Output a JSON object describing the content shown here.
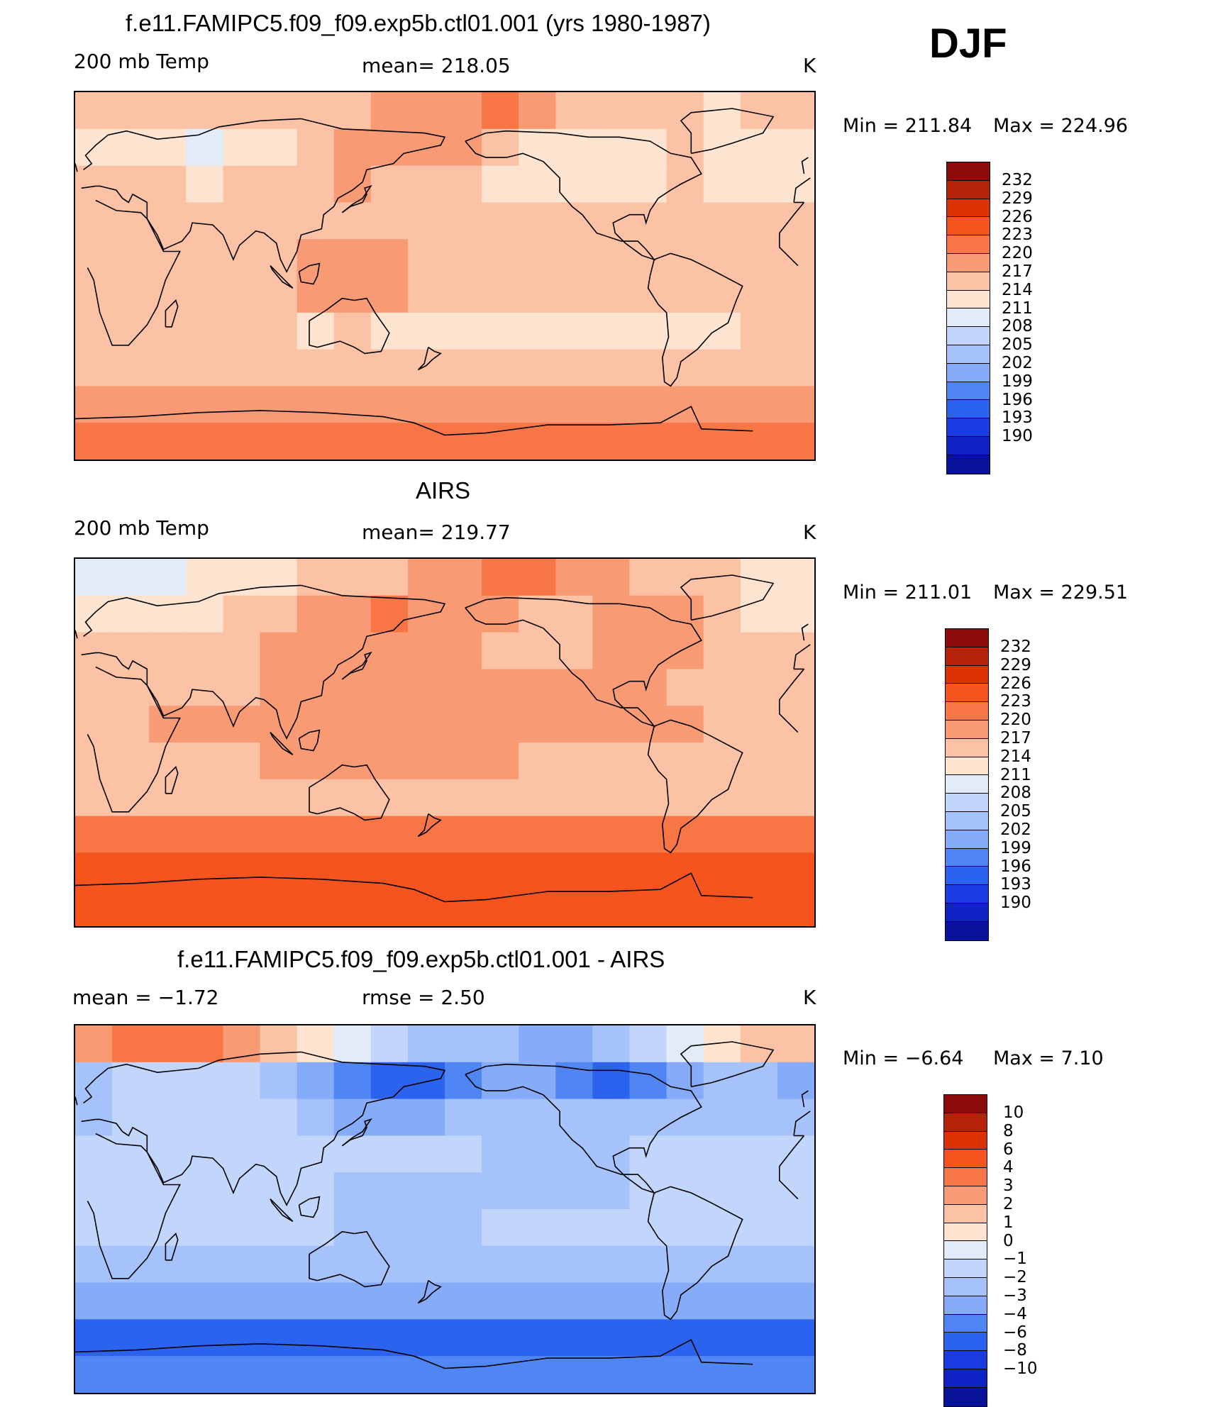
{
  "season": "DJF",
  "palette_temp": [
    "#8b0a0a",
    "#b62208",
    "#dd3304",
    "#f5541f",
    "#f87545",
    "#f89a74",
    "#fbc2a6",
    "#fde4d0",
    "#e2ebf8",
    "#c2d6fb",
    "#a5c3fa",
    "#86acf9",
    "#4f86f3",
    "#2b63ee",
    "#1a3ce2",
    "#0f23c5",
    "#08139a"
  ],
  "palette_diff": [
    "#8b0a0a",
    "#b62208",
    "#dd3304",
    "#f5541f",
    "#f87545",
    "#f89a74",
    "#fbc2a6",
    "#fde4d0",
    "#e2ebf8",
    "#c2d6fb",
    "#a5c3fa",
    "#86acf9",
    "#4f86f3",
    "#2b63ee",
    "#1a3ce2",
    "#0f23c5",
    "#08139a"
  ],
  "chart_data": [
    {
      "type": "heatmap",
      "title": "f.e11.FAMIPC5.f09_f09.exp5b.ctl01.001 (yrs 1980-1987)",
      "left_label": "200 mb Temp",
      "center_label": "mean=  218.05",
      "units": "K",
      "min_label": "Min  =  211.84",
      "max_label": "Max  =  224.96",
      "min": 211.84,
      "max": 224.96,
      "mean": 218.05,
      "colorbar_levels": [
        "232",
        "229",
        "226",
        "223",
        "220",
        "217",
        "214",
        "211",
        "208",
        "205",
        "202",
        "199",
        "196",
        "193",
        "190"
      ],
      "rows": [
        [
          219,
          219,
          218,
          217,
          217,
          218,
          219,
          219,
          220,
          221,
          222,
          223,
          221,
          219,
          218,
          218,
          217,
          216,
          217,
          219
        ],
        [
          216,
          215,
          214,
          213,
          214,
          216,
          218,
          220,
          222,
          222,
          220,
          218,
          216,
          215,
          215,
          216,
          217,
          215,
          214,
          216
        ],
        [
          217,
          217,
          217,
          216,
          217,
          218,
          219,
          220,
          219,
          218,
          217,
          216,
          215,
          214,
          215,
          216,
          217,
          216,
          215,
          216
        ],
        [
          218,
          218,
          218,
          218,
          218,
          219,
          219,
          219,
          218,
          218,
          218,
          218,
          218,
          218,
          218,
          218,
          218,
          218,
          218,
          218
        ],
        [
          218,
          218,
          218,
          218,
          218,
          219,
          220,
          221,
          220,
          219,
          218,
          218,
          218,
          218,
          218,
          218,
          218,
          218,
          218,
          218
        ],
        [
          218,
          218,
          218,
          218,
          218,
          219,
          220,
          221,
          220,
          219,
          218,
          218,
          218,
          218,
          218,
          218,
          218,
          218,
          218,
          218
        ],
        [
          217,
          217,
          217,
          217,
          217,
          217,
          216,
          217,
          216,
          216,
          216,
          215,
          215,
          215,
          215,
          216,
          216,
          216,
          217,
          217
        ],
        [
          218,
          218,
          218,
          218,
          218,
          218,
          218,
          218,
          218,
          218,
          218,
          218,
          218,
          218,
          218,
          218,
          218,
          218,
          218,
          218
        ],
        [
          222,
          222,
          222,
          222,
          222,
          222,
          222,
          222,
          222,
          222,
          222,
          222,
          222,
          222,
          222,
          222,
          222,
          222,
          222,
          222
        ],
        [
          224,
          224,
          224,
          224,
          224,
          224,
          224,
          224,
          224,
          224,
          224,
          224,
          224,
          224,
          224,
          224,
          224,
          224,
          224,
          224
        ]
      ]
    },
    {
      "type": "heatmap",
      "title": "AIRS",
      "left_label": "200 mb Temp",
      "center_label": "mean=  219.77",
      "units": "K",
      "min_label": "Min  =  211.01",
      "max_label": "Max  =  229.51",
      "min": 211.01,
      "max": 229.51,
      "mean": 219.77,
      "colorbar_levels": [
        "232",
        "229",
        "226",
        "223",
        "220",
        "217",
        "214",
        "211",
        "208",
        "205",
        "202",
        "199",
        "196",
        "193",
        "190"
      ],
      "rows": [
        [
          213,
          213,
          213,
          214,
          215,
          216,
          217,
          218,
          219,
          221,
          222,
          223,
          224,
          222,
          220,
          219,
          218,
          217,
          216,
          214
        ],
        [
          214,
          214,
          215,
          216,
          217,
          219,
          221,
          222,
          223,
          222,
          221,
          220,
          219,
          219,
          220,
          221,
          220,
          218,
          216,
          215
        ],
        [
          218,
          218,
          218,
          218,
          219,
          220,
          221,
          222,
          222,
          221,
          220,
          219,
          219,
          219,
          220,
          221,
          220,
          219,
          218,
          218
        ],
        [
          219,
          219,
          219,
          219,
          219,
          220,
          221,
          221,
          221,
          221,
          221,
          221,
          221,
          221,
          221,
          220,
          219,
          219,
          219,
          219
        ],
        [
          219,
          219,
          220,
          220,
          220,
          221,
          221,
          221,
          221,
          221,
          221,
          221,
          221,
          220,
          220,
          221,
          220,
          219,
          219,
          219
        ],
        [
          219,
          219,
          219,
          219,
          219,
          220,
          221,
          221,
          221,
          221,
          221,
          220,
          218,
          217,
          218,
          219,
          219,
          219,
          219,
          219
        ],
        [
          219,
          219,
          219,
          219,
          219,
          219,
          219,
          219,
          219,
          219,
          219,
          219,
          219,
          219,
          219,
          219,
          219,
          219,
          219,
          219
        ],
        [
          224,
          224,
          224,
          224,
          224,
          224,
          224,
          224,
          224,
          224,
          224,
          224,
          224,
          224,
          224,
          224,
          224,
          224,
          224,
          224
        ],
        [
          227,
          227,
          227,
          227,
          227,
          227,
          227,
          227,
          227,
          227,
          227,
          227,
          227,
          227,
          227,
          227,
          227,
          227,
          227,
          227
        ],
        [
          228,
          228,
          228,
          228,
          228,
          228,
          228,
          228,
          228,
          228,
          228,
          228,
          228,
          228,
          228,
          228,
          228,
          228,
          228,
          228
        ]
      ]
    },
    {
      "type": "heatmap",
      "title": "f.e11.FAMIPC5.f09_f09.exp5b.ctl01.001 - AIRS",
      "left_label": "mean =    −1.72",
      "center_label": "rmse  =     2.50",
      "units": "K",
      "min_label": "Min  =    −6.64",
      "max_label": "Max  =      7.10",
      "min": -6.64,
      "max": 7.1,
      "mean": -1.72,
      "rmse": 2.5,
      "colorbar_levels": [
        "10",
        "8",
        "6",
        "4",
        "3",
        "2",
        "1",
        "0",
        "−1",
        "−2",
        "−3",
        "−4",
        "−6",
        "−8",
        "−10"
      ],
      "rows": [
        [
          3,
          4,
          5,
          4,
          3,
          2,
          1,
          0,
          -1,
          -2,
          -2,
          -2,
          -3,
          -3,
          -2,
          -1,
          0,
          1,
          2,
          2
        ],
        [
          -2,
          -1,
          -1,
          -1,
          -1,
          -2,
          -3,
          -4,
          -5,
          -5,
          -4,
          -3,
          -3,
          -4,
          -5,
          -4,
          -3,
          -2,
          -2,
          -3
        ],
        [
          -2,
          -1,
          -1,
          -1,
          -1,
          -1,
          -2,
          -3,
          -3,
          -3,
          -2,
          -2,
          -2,
          -2,
          -2,
          -2,
          -2,
          -2,
          -2,
          -2
        ],
        [
          -1,
          -1,
          -1,
          -1,
          -1,
          -1,
          -1,
          -1,
          -1,
          -1,
          -1,
          -2,
          -2,
          -2,
          -2,
          -1,
          -1,
          -1,
          -1,
          -1
        ],
        [
          -1,
          -1,
          -1,
          -1,
          -1,
          -1,
          -1,
          -2,
          -2,
          -2,
          -2,
          -2,
          -2,
          -2,
          -2,
          -1,
          -1,
          -1,
          -1,
          -1
        ],
        [
          -1,
          -1,
          -1,
          -1,
          -1,
          -1,
          -1,
          -2,
          -2,
          -2,
          -2,
          -1,
          -1,
          -1,
          -1,
          -1,
          -1,
          -1,
          -1,
          -1
        ],
        [
          -2,
          -2,
          -2,
          -2,
          -2,
          -2,
          -2,
          -2,
          -2,
          -2,
          -2,
          -2,
          -2,
          -2,
          -2,
          -2,
          -2,
          -2,
          -2,
          -2
        ],
        [
          -3,
          -3,
          -3,
          -3,
          -3,
          -3,
          -3,
          -3,
          -3,
          -3,
          -3,
          -3,
          -3,
          -3,
          -3,
          -3,
          -3,
          -3,
          -3,
          -3
        ],
        [
          -5,
          -5,
          -5,
          -5,
          -5,
          -5,
          -5,
          -5,
          -5,
          -5,
          -5,
          -5,
          -5,
          -5,
          -5,
          -5,
          -5,
          -5,
          -5,
          -5
        ],
        [
          -4,
          -4,
          -4,
          -4,
          -4,
          -4,
          -4,
          -4,
          -4,
          -4,
          -4,
          -4,
          -4,
          -4,
          -4,
          -4,
          -4,
          -4,
          -4,
          -4
        ]
      ]
    }
  ]
}
